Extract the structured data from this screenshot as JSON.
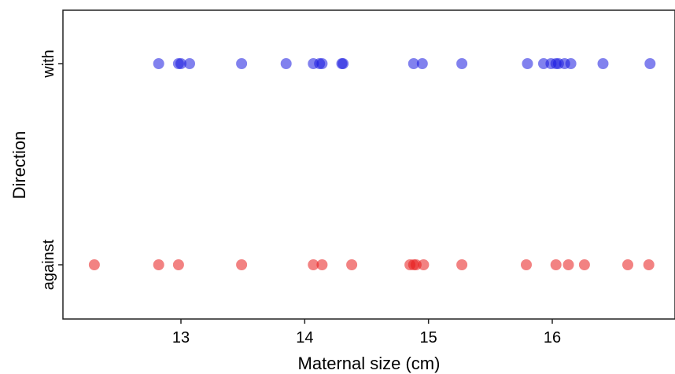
{
  "chart_data": {
    "type": "scatter",
    "xlabel": "Maternal size (cm)",
    "ylabel": "Direction",
    "xlim": [
      12.0,
      16.9
    ],
    "x_ticks": [
      13,
      14,
      15,
      16
    ],
    "x_tick_labels": [
      "13",
      "14",
      "15",
      "16"
    ],
    "categories": [
      "against",
      "with"
    ],
    "grid": false,
    "legend": "none",
    "series": [
      {
        "category": "with",
        "color": "#1a1ae0",
        "values": [
          12.82,
          12.98,
          13.0,
          13.07,
          13.49,
          13.85,
          14.07,
          14.12,
          14.14,
          14.3,
          14.31,
          14.88,
          14.95,
          15.27,
          15.8,
          15.93,
          15.99,
          16.03,
          16.05,
          16.1,
          16.15,
          16.41,
          16.79
        ]
      },
      {
        "category": "against",
        "color": "#e81c1c",
        "values": [
          12.3,
          12.82,
          12.98,
          13.49,
          14.07,
          14.14,
          14.38,
          14.85,
          14.88,
          14.9,
          14.96,
          15.27,
          15.79,
          16.03,
          16.13,
          16.26,
          16.61,
          16.78
        ]
      }
    ]
  }
}
